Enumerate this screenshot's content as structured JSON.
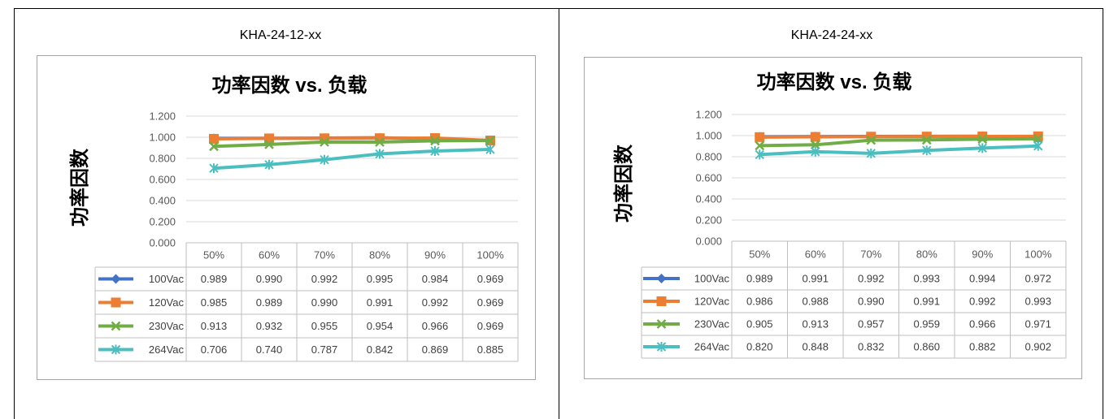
{
  "panels": [
    {
      "heading": "KHA-24-12-xx"
    },
    {
      "heading": "KHA-24-24-xx"
    }
  ],
  "chart_data": [
    {
      "type": "line",
      "title": "功率因数 vs. 负载",
      "ylabel": "功率因数",
      "categories": [
        "50%",
        "60%",
        "70%",
        "80%",
        "90%",
        "100%"
      ],
      "ylim": [
        0,
        1.2
      ],
      "yticks": [
        0,
        0.2,
        0.4,
        0.6,
        0.8,
        1.0,
        1.2
      ],
      "ytick_labels": [
        "0.000",
        "0.200",
        "0.400",
        "0.600",
        "0.800",
        "1.000",
        "1.200"
      ],
      "grid": true,
      "legend": "data-table",
      "series": [
        {
          "name": "100Vac",
          "values": [
            0.989,
            0.99,
            0.992,
            0.995,
            0.984,
            0.969
          ],
          "color": "#4472C4",
          "marker": "diamond"
        },
        {
          "name": "120Vac",
          "values": [
            0.985,
            0.989,
            0.99,
            0.991,
            0.992,
            0.969
          ],
          "color": "#ED7D31",
          "marker": "square"
        },
        {
          "name": "230Vac",
          "values": [
            0.913,
            0.932,
            0.955,
            0.954,
            0.966,
            0.969
          ],
          "color": "#70AD47",
          "marker": "x"
        },
        {
          "name": "264Vac",
          "values": [
            0.706,
            0.74,
            0.787,
            0.842,
            0.869,
            0.885
          ],
          "color": "#4BBFC0",
          "marker": "asterisk"
        }
      ]
    },
    {
      "type": "line",
      "title": "功率因数 vs. 负载",
      "ylabel": "功率因数",
      "categories": [
        "50%",
        "60%",
        "70%",
        "80%",
        "90%",
        "100%"
      ],
      "ylim": [
        0,
        1.2
      ],
      "yticks": [
        0,
        0.2,
        0.4,
        0.6,
        0.8,
        1.0,
        1.2
      ],
      "ytick_labels": [
        "0.000",
        "0.200",
        "0.400",
        "0.600",
        "0.800",
        "1.000",
        "1.200"
      ],
      "grid": true,
      "legend": "data-table",
      "series": [
        {
          "name": "100Vac",
          "values": [
            0.989,
            0.991,
            0.992,
            0.993,
            0.994,
            0.972
          ],
          "color": "#4472C4",
          "marker": "diamond"
        },
        {
          "name": "120Vac",
          "values": [
            0.986,
            0.988,
            0.99,
            0.991,
            0.992,
            0.993
          ],
          "color": "#ED7D31",
          "marker": "square"
        },
        {
          "name": "230Vac",
          "values": [
            0.905,
            0.913,
            0.957,
            0.959,
            0.966,
            0.971
          ],
          "color": "#70AD47",
          "marker": "x"
        },
        {
          "name": "264Vac",
          "values": [
            0.82,
            0.848,
            0.832,
            0.86,
            0.882,
            0.902
          ],
          "color": "#4BBFC0",
          "marker": "asterisk"
        }
      ]
    }
  ]
}
